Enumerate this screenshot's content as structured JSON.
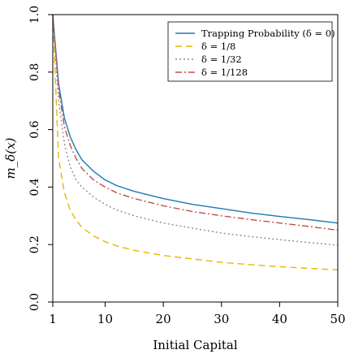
{
  "chart_data": {
    "type": "line",
    "xlabel": "Initial Capital",
    "ylabel": "m_δ(x)",
    "xlim": [
      1,
      50
    ],
    "ylim": [
      0,
      1
    ],
    "x_ticks": [
      1,
      10,
      20,
      30,
      40,
      50
    ],
    "y_ticks": [
      0.0,
      0.2,
      0.4,
      0.6,
      0.8,
      1.0
    ],
    "x_tick_labels": [
      "1",
      "10",
      "20",
      "30",
      "40",
      "50"
    ],
    "y_tick_labels": [
      "0.0",
      "0.2",
      "0.4",
      "0.6",
      "0.8",
      "1.0"
    ],
    "grid": false,
    "legend_position": "top-right",
    "x": [
      1,
      2,
      3,
      4,
      5,
      6,
      8,
      10,
      12,
      15,
      20,
      25,
      30,
      35,
      40,
      45,
      50
    ],
    "series": [
      {
        "name": "Trapping Probability (δ = 0)",
        "color": "#1f77b4",
        "dash": "solid",
        "values": [
          1.0,
          0.76,
          0.64,
          0.575,
          0.53,
          0.495,
          0.455,
          0.425,
          0.405,
          0.385,
          0.36,
          0.34,
          0.325,
          0.31,
          0.298,
          0.287,
          0.275
        ]
      },
      {
        "name": "δ = 1/8",
        "color": "#e6b800",
        "dash": "dashed",
        "values": [
          1.0,
          0.5,
          0.38,
          0.32,
          0.285,
          0.26,
          0.23,
          0.21,
          0.195,
          0.18,
          0.162,
          0.15,
          0.138,
          0.13,
          0.123,
          0.117,
          0.112
        ]
      },
      {
        "name": "δ = 1/32",
        "color": "#8c8c8c",
        "dash": "dotted",
        "values": [
          1.0,
          0.7,
          0.55,
          0.47,
          0.425,
          0.4,
          0.365,
          0.34,
          0.32,
          0.3,
          0.275,
          0.257,
          0.24,
          0.228,
          0.217,
          0.207,
          0.198
        ]
      },
      {
        "name": "δ = 1/128",
        "color": "#c0504d",
        "dash": "dashdot",
        "values": [
          1.0,
          0.74,
          0.61,
          0.545,
          0.5,
          0.465,
          0.425,
          0.4,
          0.38,
          0.36,
          0.335,
          0.315,
          0.3,
          0.287,
          0.275,
          0.263,
          0.25
        ]
      }
    ]
  }
}
